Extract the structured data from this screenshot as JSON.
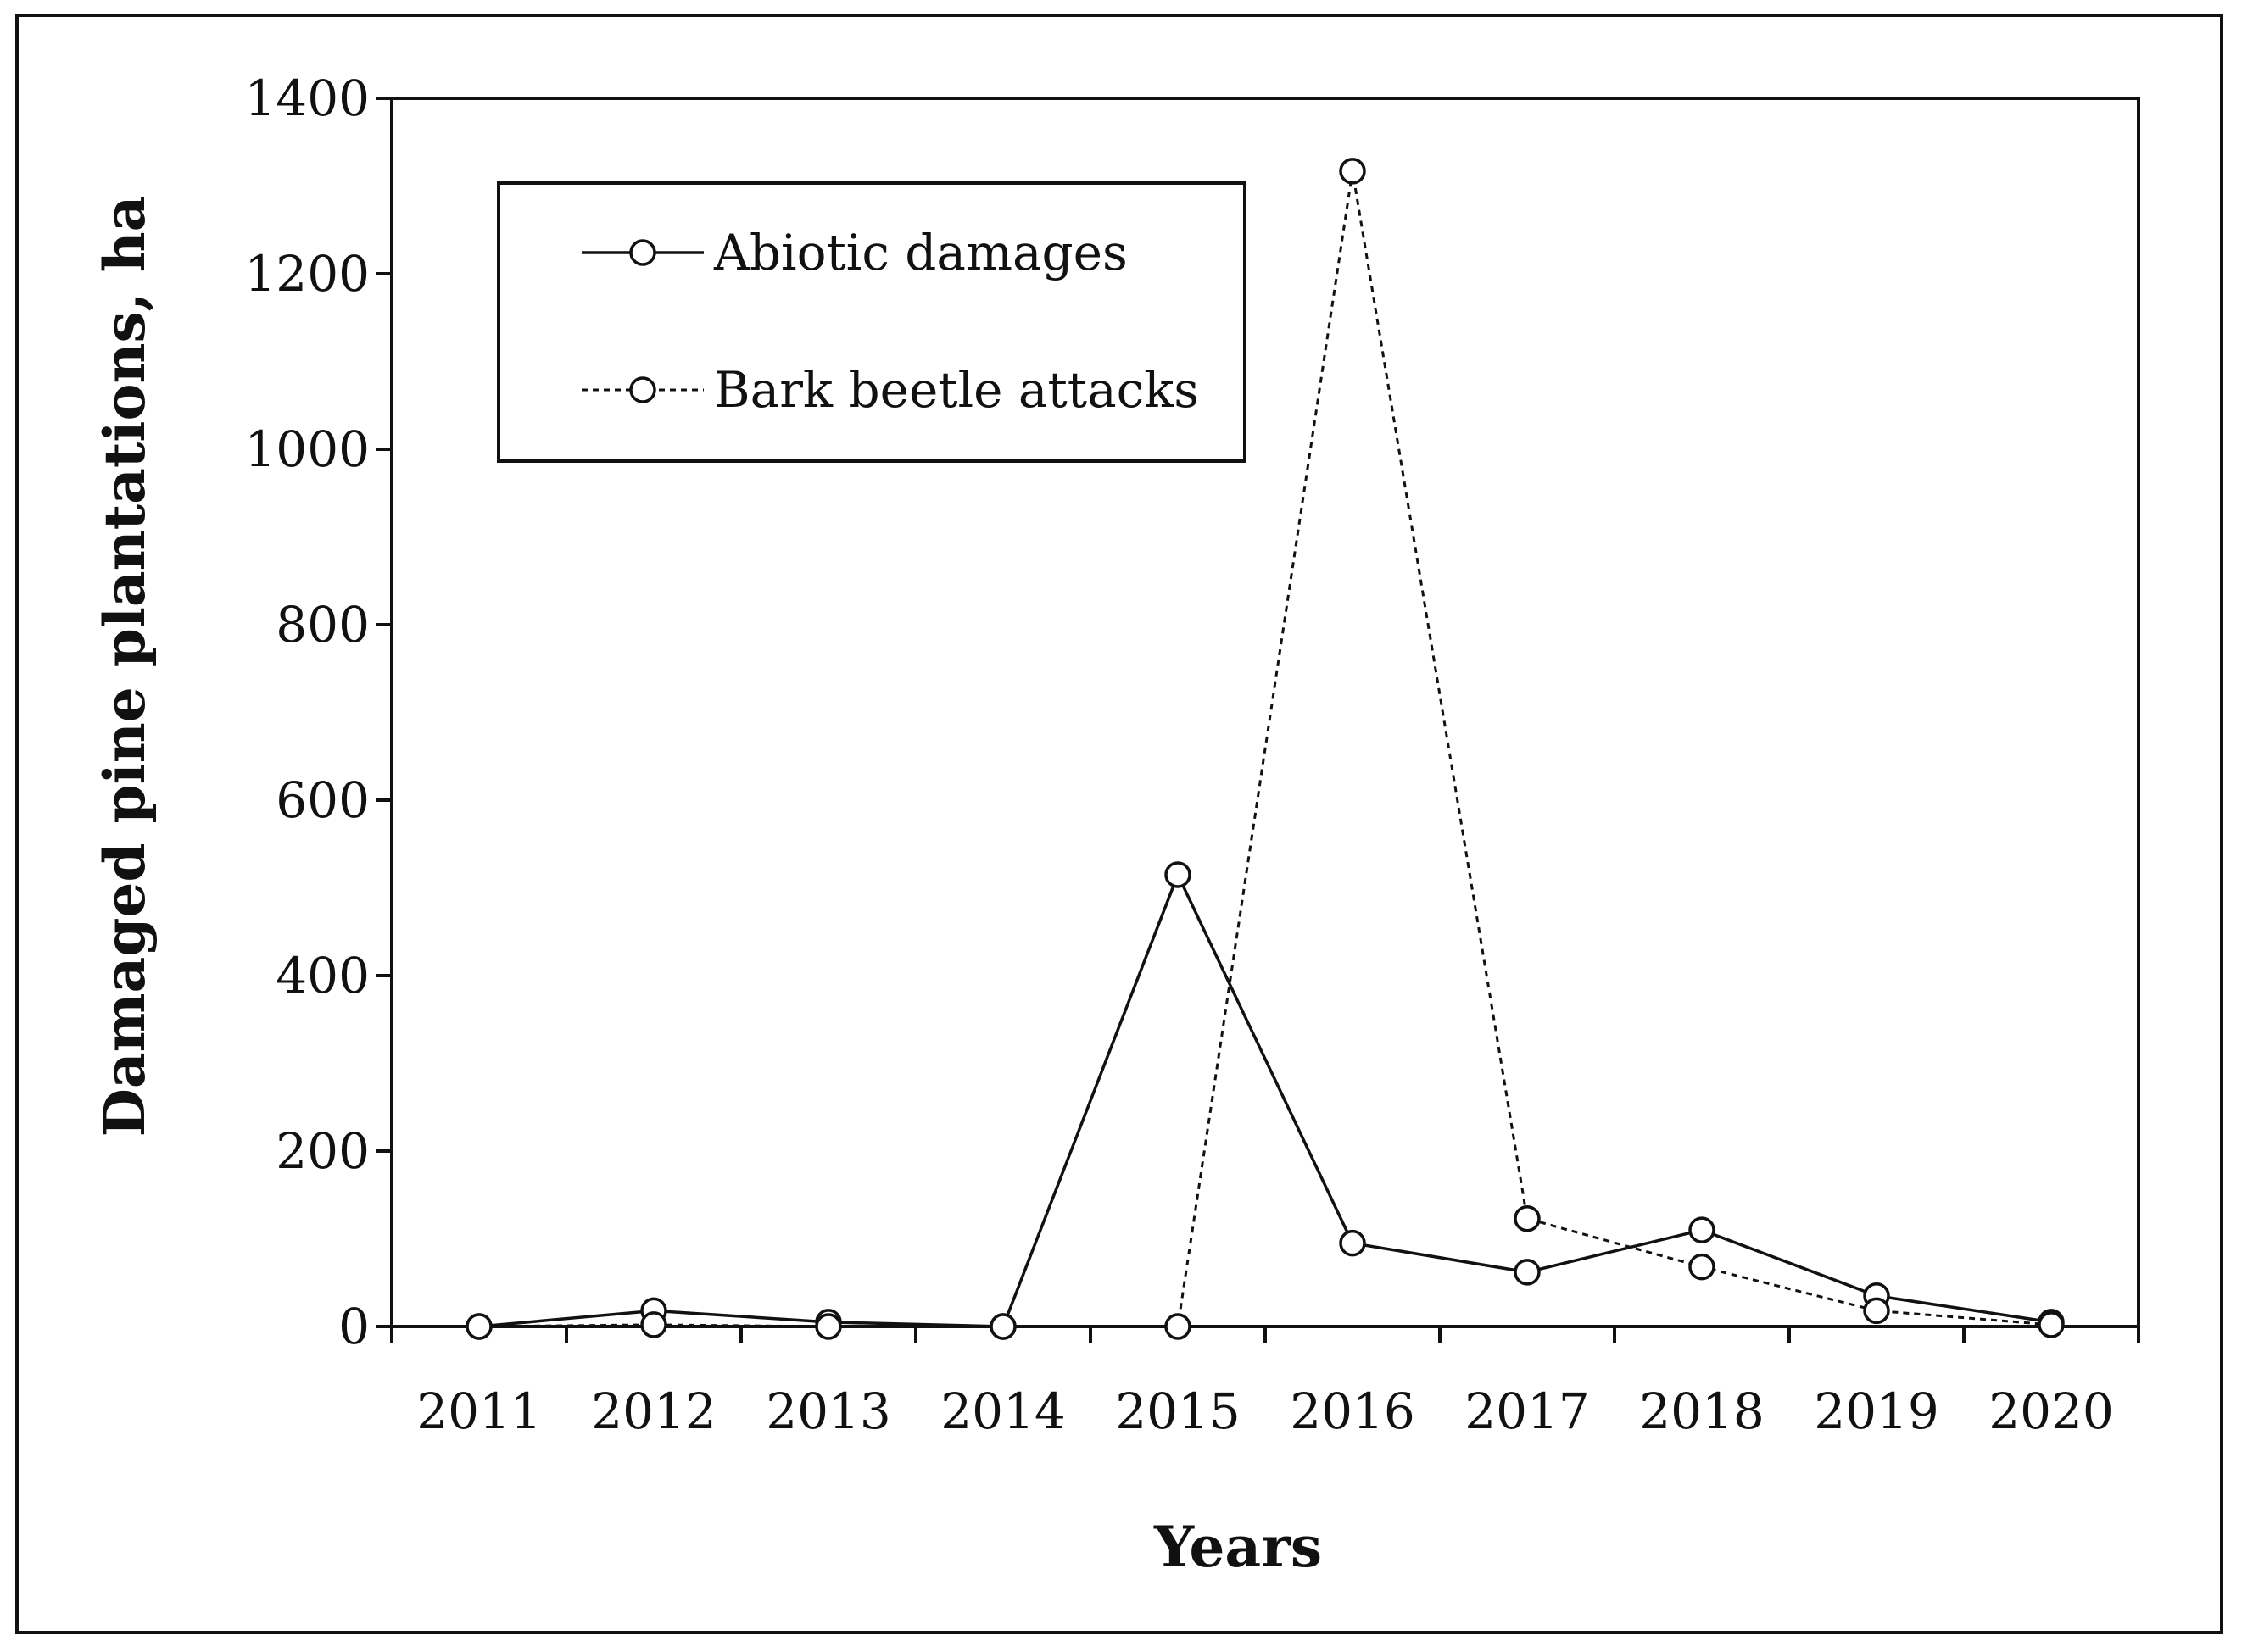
{
  "chart_data": {
    "type": "line",
    "title": "",
    "xlabel": "Years",
    "ylabel": "Damaged pine plantations,  ha",
    "categories": [
      "2011",
      "2012",
      "2013",
      "2014",
      "2015",
      "2016",
      "2017",
      "2018",
      "2019",
      "2020"
    ],
    "ylim": [
      0,
      1400
    ],
    "yticks": [
      0,
      200,
      400,
      600,
      800,
      1000,
      1200,
      1400
    ],
    "grid": false,
    "legend_position": "top-left",
    "series": [
      {
        "name": "Abiotic damages",
        "line_style": "solid",
        "values": [
          0,
          18,
          5,
          0,
          515,
          95,
          62,
          110,
          35,
          5
        ]
      },
      {
        "name": "Bark beetle attacks",
        "line_style": "dotted",
        "values": [
          0,
          2,
          0,
          0,
          0,
          1317,
          123,
          68,
          18,
          2
        ]
      }
    ],
    "colors": {
      "line": "#111111",
      "marker_fill": "#ffffff",
      "frame": "#111111"
    }
  }
}
